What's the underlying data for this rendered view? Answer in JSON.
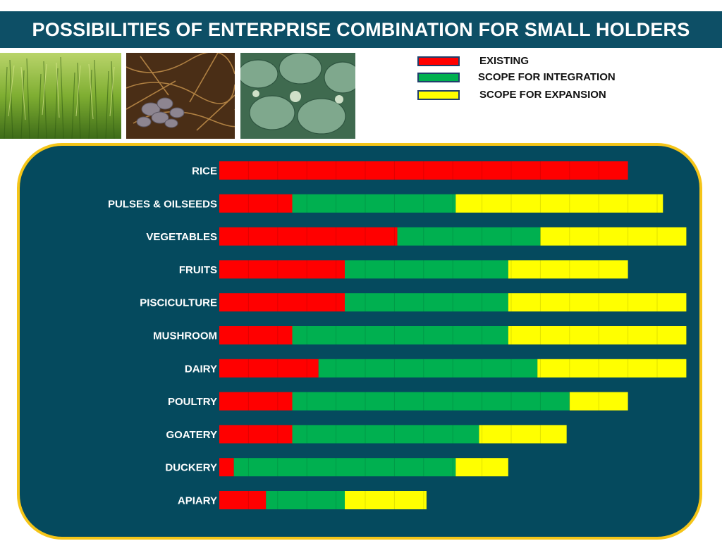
{
  "title": "POSSIBILITIES OF ENTERPRISE COMBINATION FOR SMALL HOLDERS",
  "photos": [
    {
      "name": "rice-field-photo"
    },
    {
      "name": "mushroom-bed-photo"
    },
    {
      "name": "cabbage-field-photo"
    }
  ],
  "legend": [
    {
      "key": "existing",
      "label": "EXISTING",
      "color": "#ff0000"
    },
    {
      "key": "integration",
      "label": "SCOPE FOR INTEGRATION",
      "color": "#00b050"
    },
    {
      "key": "expansion",
      "label": "SCOPE FOR EXPANSION",
      "color": "#ffff00"
    }
  ],
  "colors": {
    "existing": "#ff0000",
    "integration": "#00b050",
    "expansion": "#ffff00",
    "panel": "#054a5e",
    "panel_border": "#f5c518",
    "title_bar": "#0d4f66"
  },
  "chart_data": {
    "type": "bar",
    "orientation": "horizontal",
    "stacked": true,
    "title": "POSSIBILITIES OF ENTERPRISE COMBINATION FOR SMALL HOLDERS",
    "xlabel": "",
    "ylabel": "",
    "xlim": [
      0,
      16
    ],
    "grid": false,
    "categories": [
      "RICE",
      "PULSES & OILSEEDS",
      "VEGETABLES",
      "FRUITS",
      "PISCICULTURE",
      "MUSHROOM",
      "DAIRY",
      "POULTRY",
      "GOATERY",
      "DUCKERY",
      "APIARY"
    ],
    "series": [
      {
        "name": "EXISTING",
        "key": "existing",
        "values": [
          14,
          2.5,
          6.1,
          4.3,
          4.3,
          2.5,
          3.4,
          2.5,
          2.5,
          0.5,
          1.6
        ]
      },
      {
        "name": "SCOPE FOR INTEGRATION",
        "key": "integration",
        "values": [
          0,
          5.6,
          4.9,
          5.6,
          5.6,
          7.4,
          7.5,
          9.5,
          6.4,
          7.6,
          2.7
        ]
      },
      {
        "name": "SCOPE FOR EXPANSION",
        "key": "expansion",
        "values": [
          0,
          7.1,
          5.0,
          4.1,
          6.1,
          6.1,
          5.1,
          2.0,
          3.0,
          1.8,
          2.8
        ]
      }
    ]
  }
}
